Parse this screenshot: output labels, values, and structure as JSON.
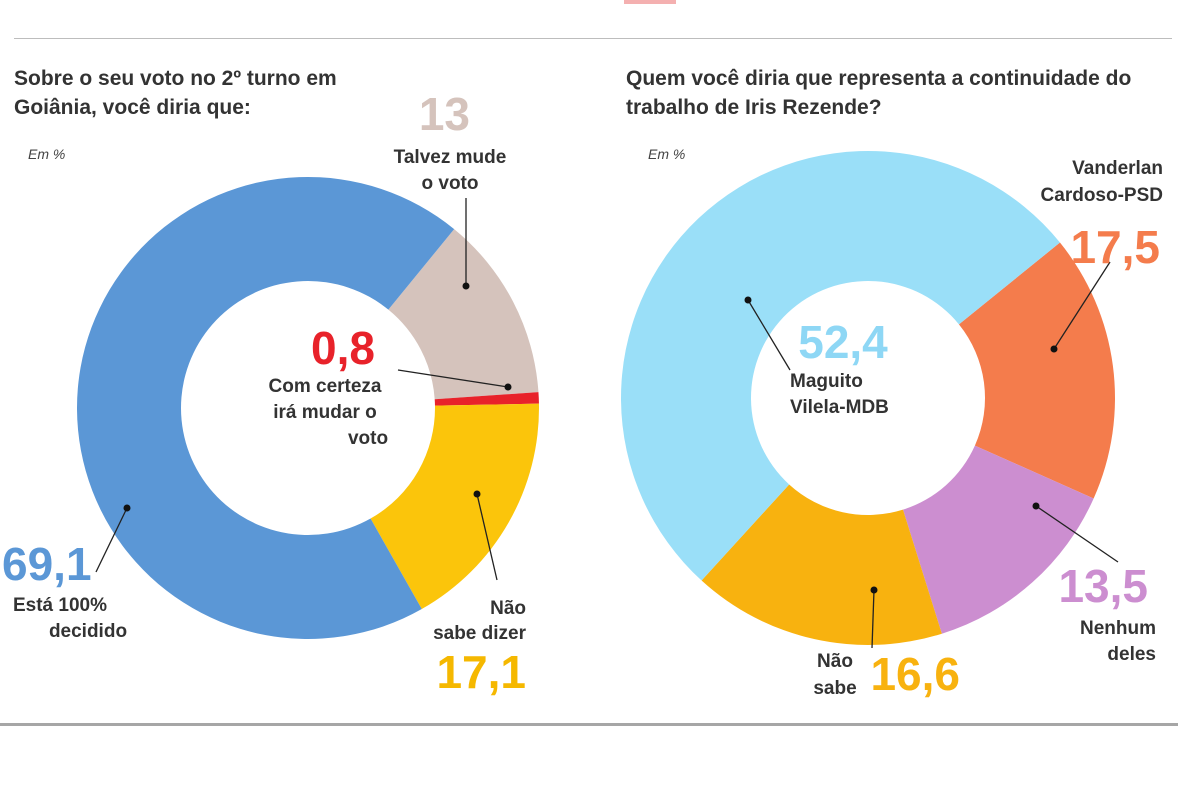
{
  "colors": {
    "accent": "#f4b0b0"
  },
  "chart_data": [
    {
      "type": "pie",
      "donut": true,
      "title": "Sobre o seu voto no 2º turno em Goiânia, você diria que:",
      "unit_label": "Em %",
      "slices": [
        {
          "label": "Talvez mude o voto",
          "value": 13,
          "display": "13",
          "color": "#d5c3bc",
          "label_color": "#d5c3bc"
        },
        {
          "label": "Com certeza irá mudar o voto",
          "value": 0.8,
          "display": "0,8",
          "color": "#e8222a",
          "label_color": "#e8222a"
        },
        {
          "label": "Não sabe dizer",
          "value": 17.1,
          "display": "17,1",
          "color": "#fbc50b",
          "label_color": "#f5b800"
        },
        {
          "label": "Está 100% decidido",
          "value": 69.1,
          "display": "69,1",
          "color": "#5b97d6",
          "label_color": "#5b97d6"
        }
      ]
    },
    {
      "type": "pie",
      "donut": true,
      "title": "Quem você diria que representa a continuidade do trabalho de Iris Rezende?",
      "unit_label": "Em %",
      "slices": [
        {
          "label": "Vanderlan Cardoso-PSD",
          "value": 17.5,
          "display": "17,5",
          "color": "#f47c4c",
          "label_color": "#f47c4c"
        },
        {
          "label": "Nenhum deles",
          "value": 13.5,
          "display": "13,5",
          "color": "#cc8ed0",
          "label_color": "#cc8ed0"
        },
        {
          "label": "Não sabe",
          "value": 16.6,
          "display": "16,6",
          "color": "#f8b20f",
          "label_color": "#f8b20f"
        },
        {
          "label": "Maguito Vilela-MDB",
          "value": 52.4,
          "display": "52,4",
          "color": "#9adff8",
          "label_color": "#8ed7f5"
        }
      ]
    }
  ]
}
